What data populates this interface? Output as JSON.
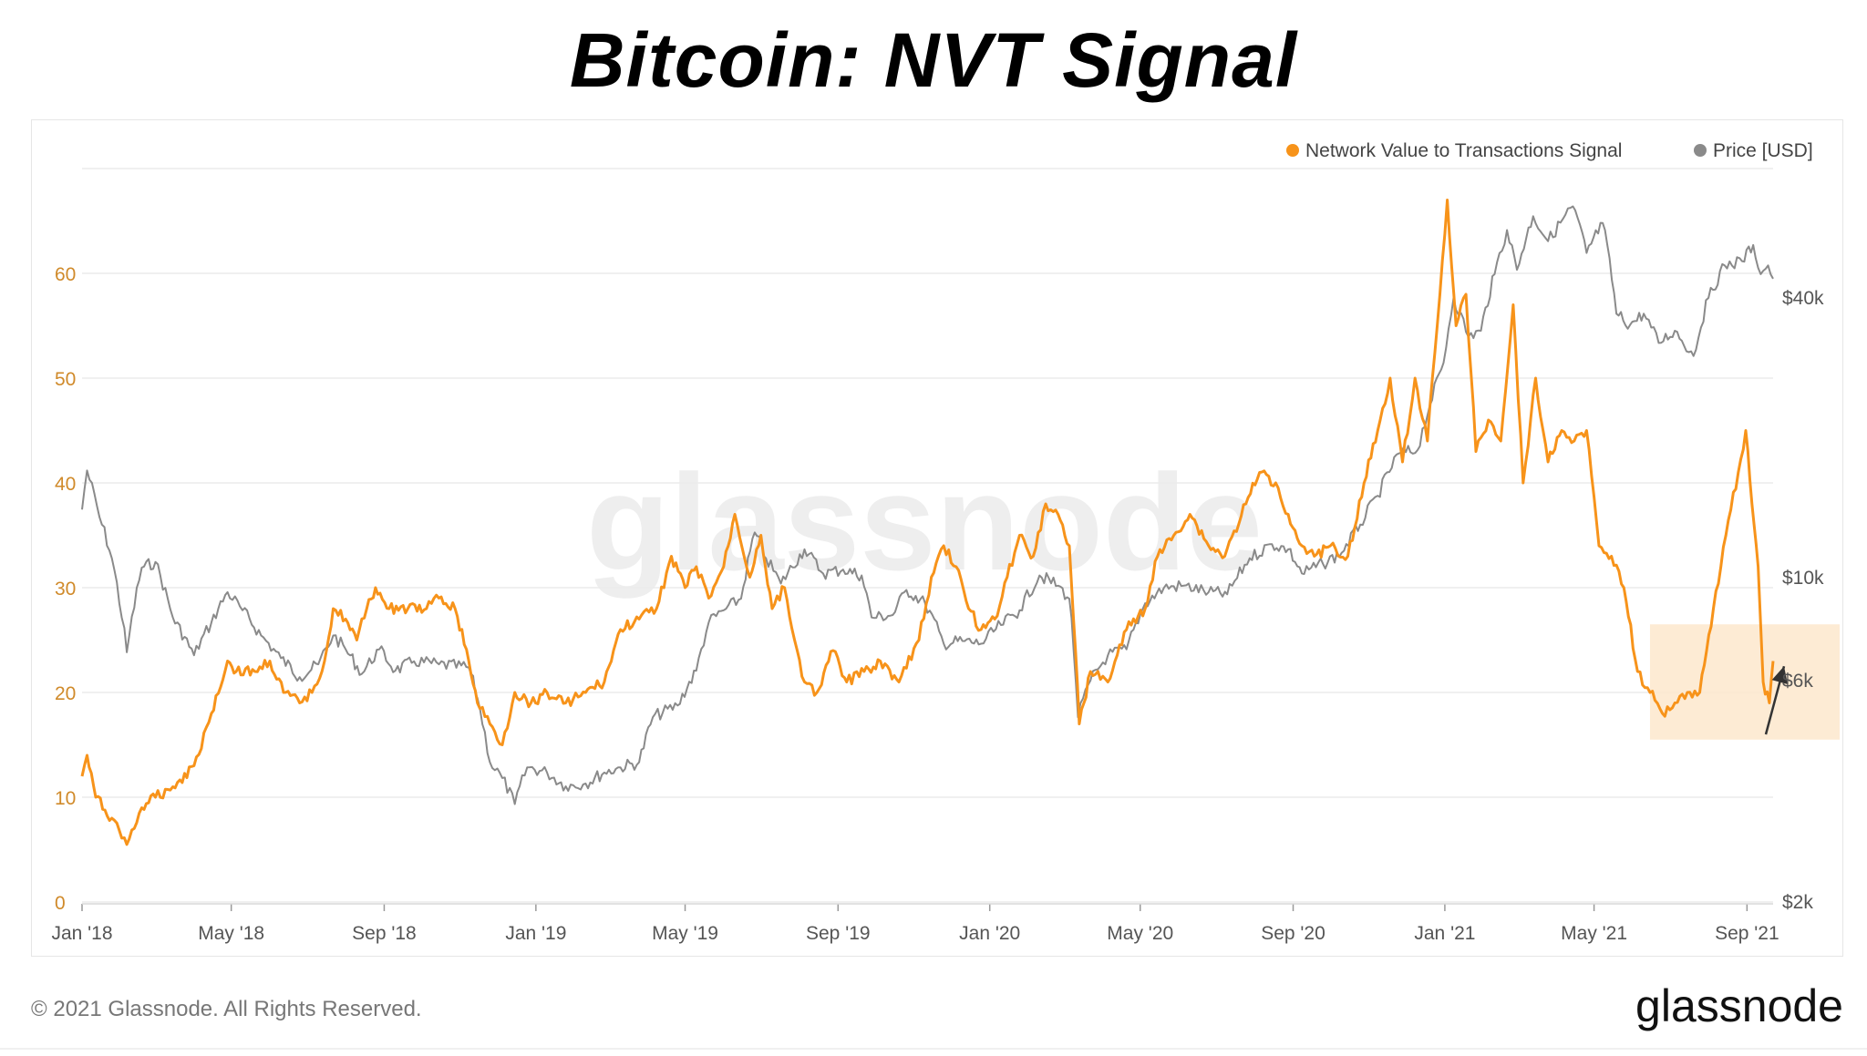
{
  "title": "Bitcoin: NVT Signal",
  "footer": {
    "copyright": "© 2021 Glassnode. All Rights Reserved.",
    "logo": "glassnode",
    "watermark": "glassnode"
  },
  "colors": {
    "nvt": "#f7931a",
    "price": "#8a8a8a",
    "left_axis_text": "#d08a2a",
    "grid": "#ececec",
    "highlight": "#fde7cc"
  },
  "chart_data": {
    "type": "line",
    "legend_position": "top-right",
    "grid": true,
    "y_left": {
      "ticks": [
        "0",
        "10",
        "20",
        "30",
        "40",
        "50",
        "60"
      ],
      "range": [
        0,
        70
      ]
    },
    "y_right": {
      "scale": "log",
      "tick_values": [
        2000,
        6000,
        10000,
        40000
      ],
      "ticks": [
        "$2k",
        "$6k",
        "$10k",
        "$40k"
      ]
    },
    "x_ticks": [
      "Jan '18",
      "May '18",
      "Sep '18",
      "Jan '19",
      "May '19",
      "Sep '19",
      "Jan '20",
      "May '20",
      "Sep '20",
      "Jan '21",
      "May '21",
      "Sep '21"
    ],
    "x_range": [
      "2018-01-01",
      "2021-09-22"
    ],
    "series": [
      {
        "name": "Network Value to Transactions Signal",
        "axis": "left",
        "points": [
          [
            "2018-01-01",
            12
          ],
          [
            "2018-01-05",
            14
          ],
          [
            "2018-01-12",
            10
          ],
          [
            "2018-01-25",
            8
          ],
          [
            "2018-02-06",
            5.5
          ],
          [
            "2018-02-18",
            9
          ],
          [
            "2018-03-01",
            10
          ],
          [
            "2018-03-15",
            11
          ],
          [
            "2018-04-01",
            13
          ],
          [
            "2018-04-15",
            18
          ],
          [
            "2018-04-28",
            23
          ],
          [
            "2018-05-05",
            22
          ],
          [
            "2018-05-20",
            22
          ],
          [
            "2018-06-01",
            23
          ],
          [
            "2018-06-12",
            20
          ],
          [
            "2018-06-25",
            19
          ],
          [
            "2018-07-05",
            20
          ],
          [
            "2018-07-15",
            23
          ],
          [
            "2018-07-22",
            28
          ],
          [
            "2018-08-01",
            27
          ],
          [
            "2018-08-10",
            25
          ],
          [
            "2018-08-18",
            28
          ],
          [
            "2018-08-25",
            30
          ],
          [
            "2018-09-05",
            28
          ],
          [
            "2018-09-20",
            28
          ],
          [
            "2018-10-05",
            28
          ],
          [
            "2018-10-15",
            29
          ],
          [
            "2018-10-28",
            28
          ],
          [
            "2018-11-08",
            23
          ],
          [
            "2018-11-15",
            19
          ],
          [
            "2018-11-25",
            17
          ],
          [
            "2018-12-05",
            15
          ],
          [
            "2018-12-15",
            20
          ],
          [
            "2018-12-28",
            19
          ],
          [
            "2019-01-10",
            20
          ],
          [
            "2019-01-25",
            19
          ],
          [
            "2019-02-10",
            20
          ],
          [
            "2019-02-25",
            21
          ],
          [
            "2019-03-10",
            26
          ],
          [
            "2019-03-25",
            27
          ],
          [
            "2019-04-08",
            28
          ],
          [
            "2019-04-20",
            33
          ],
          [
            "2019-05-01",
            30
          ],
          [
            "2019-05-10",
            32
          ],
          [
            "2019-05-20",
            29
          ],
          [
            "2019-06-01",
            32
          ],
          [
            "2019-06-10",
            37
          ],
          [
            "2019-06-22",
            31
          ],
          [
            "2019-07-01",
            35
          ],
          [
            "2019-07-10",
            28
          ],
          [
            "2019-07-20",
            30
          ],
          [
            "2019-07-28",
            25
          ],
          [
            "2019-08-05",
            21
          ],
          [
            "2019-08-15",
            20
          ],
          [
            "2019-08-28",
            24
          ],
          [
            "2019-09-08",
            21
          ],
          [
            "2019-09-22",
            22
          ],
          [
            "2019-10-05",
            23
          ],
          [
            "2019-10-20",
            21
          ],
          [
            "2019-11-05",
            25
          ],
          [
            "2019-11-15",
            31
          ],
          [
            "2019-11-25",
            34
          ],
          [
            "2019-12-05",
            32
          ],
          [
            "2019-12-15",
            28
          ],
          [
            "2019-12-25",
            26
          ],
          [
            "2020-01-05",
            27
          ],
          [
            "2020-01-15",
            31
          ],
          [
            "2020-01-25",
            35
          ],
          [
            "2020-02-05",
            33
          ],
          [
            "2020-02-15",
            38
          ],
          [
            "2020-02-25",
            37
          ],
          [
            "2020-03-05",
            34
          ],
          [
            "2020-03-10",
            24
          ],
          [
            "2020-03-13",
            17
          ],
          [
            "2020-03-22",
            22
          ],
          [
            "2020-04-05",
            21
          ],
          [
            "2020-04-20",
            26
          ],
          [
            "2020-05-05",
            28
          ],
          [
            "2020-05-15",
            33
          ],
          [
            "2020-05-28",
            35
          ],
          [
            "2020-06-10",
            37
          ],
          [
            "2020-06-25",
            34
          ],
          [
            "2020-07-08",
            33
          ],
          [
            "2020-07-25",
            38
          ],
          [
            "2020-08-05",
            41
          ],
          [
            "2020-08-18",
            40
          ],
          [
            "2020-08-28",
            37
          ],
          [
            "2020-09-08",
            34
          ],
          [
            "2020-09-18",
            33
          ],
          [
            "2020-10-01",
            34
          ],
          [
            "2020-10-15",
            33
          ],
          [
            "2020-10-28",
            40
          ],
          [
            "2020-11-08",
            45
          ],
          [
            "2020-11-18",
            50
          ],
          [
            "2020-11-28",
            42
          ],
          [
            "2020-12-08",
            50
          ],
          [
            "2020-12-18",
            44
          ],
          [
            "2020-12-28",
            58
          ],
          [
            "2021-01-03",
            67
          ],
          [
            "2021-01-10",
            55
          ],
          [
            "2021-01-18",
            58
          ],
          [
            "2021-01-26",
            43
          ],
          [
            "2021-02-05",
            46
          ],
          [
            "2021-02-15",
            44
          ],
          [
            "2021-02-25",
            57
          ],
          [
            "2021-03-05",
            40
          ],
          [
            "2021-03-15",
            50
          ],
          [
            "2021-03-25",
            42
          ],
          [
            "2021-04-05",
            45
          ],
          [
            "2021-04-15",
            44
          ],
          [
            "2021-04-25",
            45
          ],
          [
            "2021-05-05",
            34
          ],
          [
            "2021-05-15",
            33
          ],
          [
            "2021-05-25",
            30
          ],
          [
            "2021-06-05",
            22
          ],
          [
            "2021-06-15",
            20
          ],
          [
            "2021-06-25",
            18
          ],
          [
            "2021-07-05",
            19
          ],
          [
            "2021-07-15",
            20
          ],
          [
            "2021-07-25",
            20
          ],
          [
            "2021-08-05",
            28
          ],
          [
            "2021-08-15",
            35
          ],
          [
            "2021-08-25",
            41
          ],
          [
            "2021-08-31",
            45
          ],
          [
            "2021-09-05",
            38
          ],
          [
            "2021-09-10",
            32
          ],
          [
            "2021-09-14",
            21
          ],
          [
            "2021-09-19",
            19
          ],
          [
            "2021-09-22",
            23
          ]
        ]
      },
      {
        "name": "Price [USD]",
        "axis": "right",
        "points": [
          [
            "2018-01-01",
            14000
          ],
          [
            "2018-01-05",
            17000
          ],
          [
            "2018-01-15",
            13500
          ],
          [
            "2018-01-25",
            11000
          ],
          [
            "2018-02-06",
            6900
          ],
          [
            "2018-02-18",
            10500
          ],
          [
            "2018-03-01",
            10800
          ],
          [
            "2018-03-15",
            8200
          ],
          [
            "2018-04-01",
            6800
          ],
          [
            "2018-04-15",
            8000
          ],
          [
            "2018-04-28",
            9300
          ],
          [
            "2018-05-10",
            8500
          ],
          [
            "2018-05-25",
            7500
          ],
          [
            "2018-06-10",
            6700
          ],
          [
            "2018-06-25",
            6100
          ],
          [
            "2018-07-10",
            6500
          ],
          [
            "2018-07-22",
            7500
          ],
          [
            "2018-08-01",
            7000
          ],
          [
            "2018-08-14",
            6200
          ],
          [
            "2018-08-28",
            7000
          ],
          [
            "2018-09-10",
            6300
          ],
          [
            "2018-09-25",
            6600
          ],
          [
            "2018-10-15",
            6500
          ],
          [
            "2018-11-08",
            6400
          ],
          [
            "2018-11-15",
            5500
          ],
          [
            "2018-11-25",
            4000
          ],
          [
            "2018-12-05",
            3700
          ],
          [
            "2018-12-15",
            3250
          ],
          [
            "2018-12-25",
            3900
          ],
          [
            "2019-01-10",
            3800
          ],
          [
            "2019-01-25",
            3550
          ],
          [
            "2019-02-10",
            3600
          ],
          [
            "2019-02-25",
            3800
          ],
          [
            "2019-03-10",
            3900
          ],
          [
            "2019-03-25",
            4000
          ],
          [
            "2019-04-05",
            5000
          ],
          [
            "2019-04-25",
            5300
          ],
          [
            "2019-05-10",
            6300
          ],
          [
            "2019-05-20",
            8000
          ],
          [
            "2019-06-01",
            8500
          ],
          [
            "2019-06-15",
            9000
          ],
          [
            "2019-06-26",
            12500
          ],
          [
            "2019-07-05",
            11000
          ],
          [
            "2019-07-17",
            9700
          ],
          [
            "2019-08-05",
            11500
          ],
          [
            "2019-08-20",
            10200
          ],
          [
            "2019-09-05",
            10400
          ],
          [
            "2019-09-20",
            10100
          ],
          [
            "2019-09-28",
            8200
          ],
          [
            "2019-10-15",
            8300
          ],
          [
            "2019-10-26",
            9400
          ],
          [
            "2019-11-10",
            8800
          ],
          [
            "2019-11-25",
            7200
          ],
          [
            "2019-12-10",
            7300
          ],
          [
            "2019-12-25",
            7200
          ],
          [
            "2020-01-10",
            7900
          ],
          [
            "2020-01-25",
            8500
          ],
          [
            "2020-02-10",
            10100
          ],
          [
            "2020-02-25",
            9600
          ],
          [
            "2020-03-05",
            9000
          ],
          [
            "2020-03-12",
            5000
          ],
          [
            "2020-03-22",
            6000
          ],
          [
            "2020-04-05",
            6800
          ],
          [
            "2020-04-20",
            7000
          ],
          [
            "2020-05-05",
            8800
          ],
          [
            "2020-05-20",
            9500
          ],
          [
            "2020-06-05",
            9600
          ],
          [
            "2020-06-25",
            9300
          ],
          [
            "2020-07-10",
            9200
          ],
          [
            "2020-07-28",
            11000
          ],
          [
            "2020-08-15",
            11800
          ],
          [
            "2020-08-28",
            11500
          ],
          [
            "2020-09-08",
            10200
          ],
          [
            "2020-09-25",
            10700
          ],
          [
            "2020-10-10",
            11300
          ],
          [
            "2020-10-25",
            13000
          ],
          [
            "2020-11-08",
            15000
          ],
          [
            "2020-11-25",
            18500
          ],
          [
            "2020-12-10",
            18800
          ],
          [
            "2020-12-20",
            23500
          ],
          [
            "2020-12-31",
            29000
          ],
          [
            "2021-01-08",
            40000
          ],
          [
            "2021-01-20",
            33000
          ],
          [
            "2021-01-30",
            34000
          ],
          [
            "2021-02-10",
            45000
          ],
          [
            "2021-02-20",
            56000
          ],
          [
            "2021-02-28",
            46000
          ],
          [
            "2021-03-13",
            60000
          ],
          [
            "2021-03-25",
            53000
          ],
          [
            "2021-04-14",
            63000
          ],
          [
            "2021-04-25",
            50000
          ],
          [
            "2021-05-08",
            58000
          ],
          [
            "2021-05-19",
            37000
          ],
          [
            "2021-05-30",
            35000
          ],
          [
            "2021-06-10",
            37000
          ],
          [
            "2021-06-22",
            32000
          ],
          [
            "2021-07-05",
            34000
          ],
          [
            "2021-07-20",
            30000
          ],
          [
            "2021-08-01",
            40000
          ],
          [
            "2021-08-14",
            47000
          ],
          [
            "2021-08-28",
            48000
          ],
          [
            "2021-09-06",
            52000
          ],
          [
            "2021-09-12",
            45000
          ],
          [
            "2021-09-18",
            47000
          ],
          [
            "2021-09-22",
            44000
          ]
        ]
      }
    ],
    "annotations": [
      {
        "type": "highlight_box",
        "x_range": [
          "2021-06-15",
          "2021-09-30"
        ],
        "y_range": [
          15.5,
          26.5
        ]
      },
      {
        "type": "arrow",
        "from": [
          "2021-09-22",
          16
        ],
        "to": [
          "2021-09-26",
          22.5
        ]
      }
    ]
  }
}
